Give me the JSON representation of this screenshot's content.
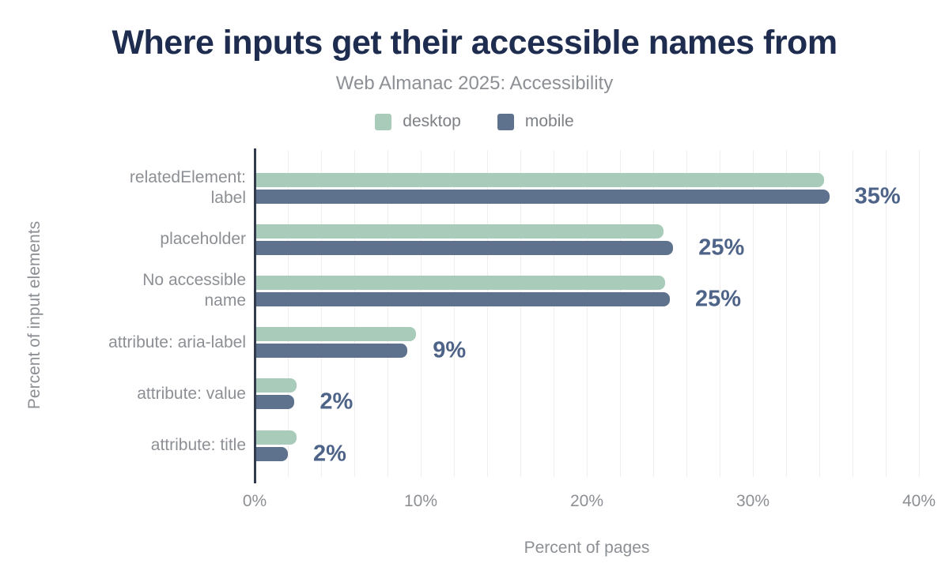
{
  "chart_data": {
    "type": "bar",
    "orientation": "horizontal",
    "title": "Where inputs get their accessible names from",
    "subtitle": "Web Almanac 2025: Accessibility",
    "xlabel": "Percent of pages",
    "ylabel": "Percent of input elements",
    "xlim": [
      0,
      40
    ],
    "x_ticks": [
      0,
      10,
      20,
      30,
      40
    ],
    "x_tick_labels": [
      "0%",
      "10%",
      "20%",
      "30%",
      "40%"
    ],
    "gridline_step_percent": 2,
    "grid": "vertical-on",
    "legend_position": "top-center",
    "categories": [
      "relatedElement: label",
      "placeholder",
      "No accessible name",
      "attribute: aria-label",
      "attribute: value",
      "attribute: title"
    ],
    "category_label_lines": [
      [
        "relatedElement:",
        "label"
      ],
      [
        "placeholder"
      ],
      [
        "No accessible",
        "name"
      ],
      [
        "attribute: aria-label"
      ],
      [
        "attribute: value"
      ],
      [
        "attribute: title"
      ]
    ],
    "series": [
      {
        "name": "desktop",
        "color": "#a9cbba",
        "values": [
          34.3,
          24.6,
          24.7,
          9.7,
          2.5,
          2.5
        ]
      },
      {
        "name": "mobile",
        "color": "#5e718d",
        "values": [
          34.6,
          25.2,
          25.0,
          9.2,
          2.4,
          2.0
        ]
      }
    ],
    "value_labels": [
      "35%",
      "25%",
      "25%",
      "9%",
      "2%",
      "2%"
    ],
    "colors": {
      "title_text": "#1e2c4f",
      "muted_text": "#8c8f94",
      "value_label_text": "#4e6388",
      "axis_line": "#323b4d",
      "gridline": "#efeeed",
      "background": "#ffffff"
    }
  }
}
